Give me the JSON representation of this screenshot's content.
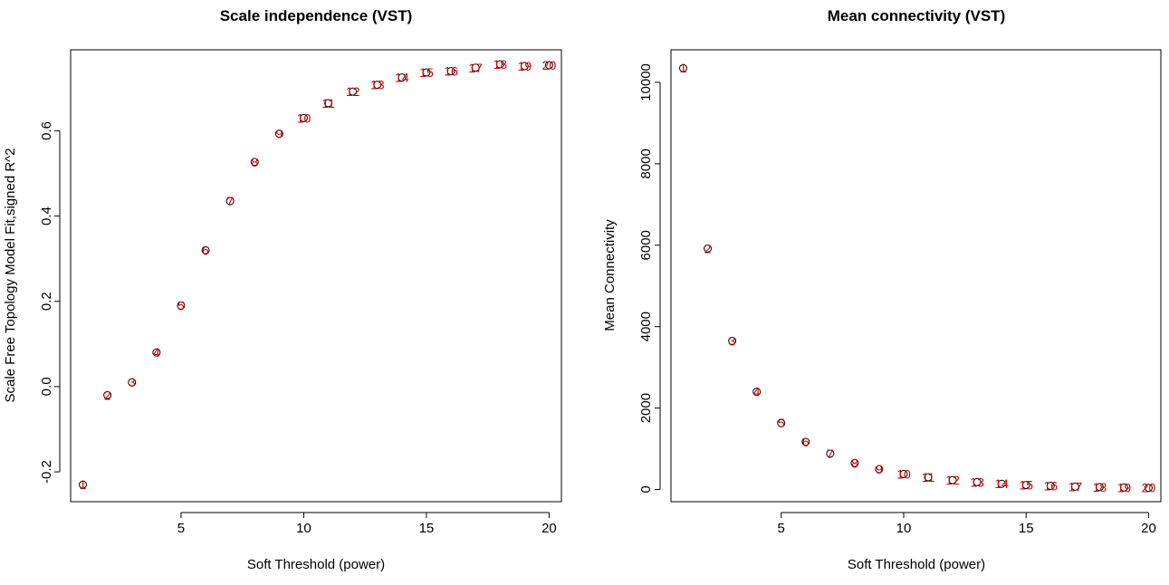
{
  "chart_data": [
    {
      "type": "scatter",
      "title": "Scale independence (VST)",
      "xlabel": "Soft Threshold (power)",
      "ylabel": "Scale Free Topology Model Fit,signed R^2",
      "xlim": [
        0.5,
        20.5
      ],
      "ylim": [
        -0.27,
        0.79
      ],
      "xticks": [
        5,
        10,
        15,
        20
      ],
      "yticks": [
        -0.2,
        0.0,
        0.2,
        0.4,
        0.6
      ],
      "ytick_labels": [
        "-0.2",
        "0.0",
        "0.2",
        "0.4",
        "0.6"
      ],
      "point_color": "#cc0000",
      "x": [
        1,
        2,
        3,
        4,
        5,
        6,
        7,
        8,
        9,
        10,
        11,
        12,
        13,
        14,
        15,
        16,
        17,
        18,
        19,
        20
      ],
      "y": [
        -0.23,
        -0.02,
        0.01,
        0.08,
        0.19,
        0.32,
        0.435,
        0.527,
        0.593,
        0.63,
        0.665,
        0.692,
        0.708,
        0.725,
        0.737,
        0.74,
        0.748,
        0.756,
        0.752,
        0.754
      ],
      "labels": [
        "1",
        "2",
        "3",
        "4",
        "5",
        "6",
        "7",
        "8",
        "9",
        "10",
        "11",
        "12",
        "13",
        "14",
        "15",
        "16",
        "17",
        "18",
        "19",
        "20"
      ]
    },
    {
      "type": "scatter",
      "title": "Mean connectivity (VST)",
      "xlabel": "Soft Threshold (power)",
      "ylabel": "Mean Connectivity",
      "xlim": [
        0.5,
        20.5
      ],
      "ylim": [
        -300,
        10800
      ],
      "xticks": [
        5,
        10,
        15,
        20
      ],
      "yticks": [
        0,
        2000,
        4000,
        6000,
        8000,
        10000
      ],
      "ytick_labels": [
        "0",
        "2000",
        "4000",
        "6000",
        "8000",
        "10000"
      ],
      "point_color": "#cc0000",
      "x": [
        1,
        2,
        3,
        4,
        5,
        6,
        7,
        8,
        9,
        10,
        11,
        12,
        13,
        14,
        15,
        16,
        17,
        18,
        19,
        20
      ],
      "y": [
        10350,
        5920,
        3650,
        2400,
        1630,
        1170,
        880,
        650,
        500,
        380,
        300,
        230,
        180,
        140,
        110,
        90,
        70,
        60,
        50,
        40
      ],
      "labels": [
        "1",
        "2",
        "3",
        "4",
        "5",
        "6",
        "7",
        "8",
        "9",
        "10",
        "11",
        "12",
        "13",
        "14",
        "15",
        "16",
        "17",
        "18",
        "19",
        "20"
      ]
    }
  ]
}
